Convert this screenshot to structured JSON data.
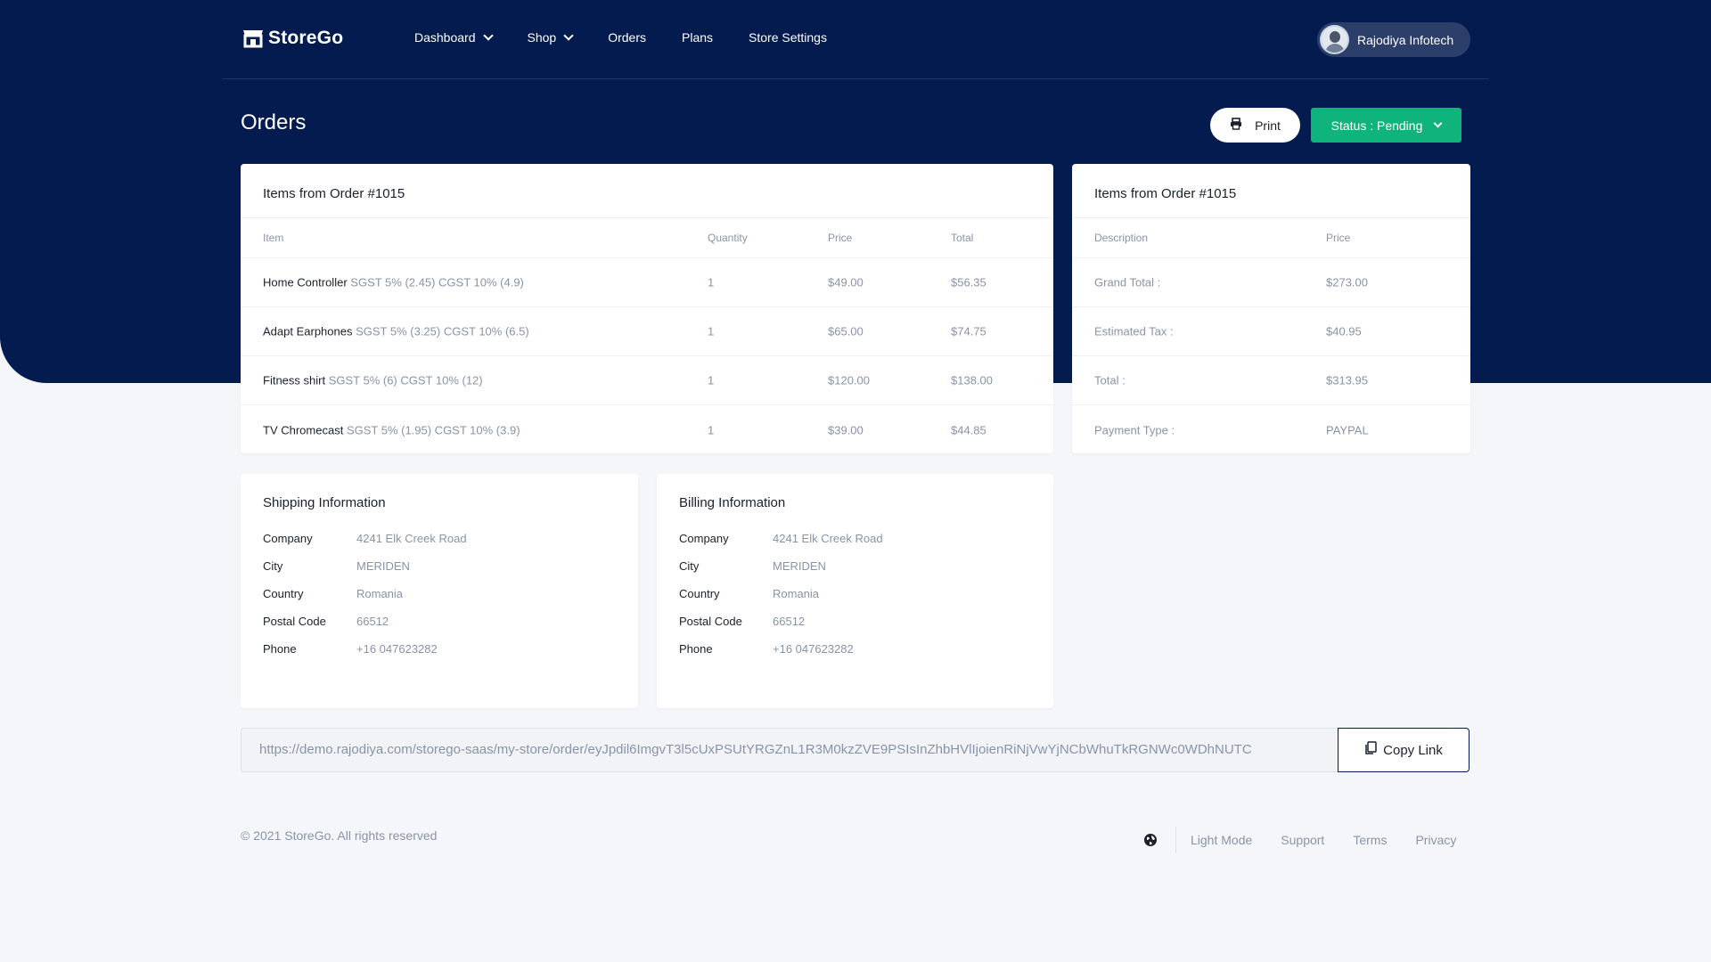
{
  "brand": {
    "name": "StoreGo"
  },
  "nav": {
    "items": [
      {
        "label": "Dashboard",
        "dropdown": true
      },
      {
        "label": "Shop",
        "dropdown": true
      },
      {
        "label": "Orders",
        "dropdown": false
      },
      {
        "label": "Plans",
        "dropdown": false
      },
      {
        "label": "Store Settings",
        "dropdown": false
      }
    ]
  },
  "user": {
    "name": "Rajodiya Infotech"
  },
  "page": {
    "title": "Orders",
    "print_label": "Print",
    "status_label": "Status : Pending"
  },
  "items_card": {
    "title": "Items from Order #1015",
    "columns": [
      "Item",
      "Quantity",
      "Price",
      "Total"
    ],
    "rows": [
      {
        "name": "Home Controller",
        "tax": "SGST 5% (2.45) CGST 10% (4.9)",
        "qty": "1",
        "price": "$49.00",
        "total": "$56.35"
      },
      {
        "name": "Adapt Earphones",
        "tax": "SGST 5% (3.25) CGST 10% (6.5)",
        "qty": "1",
        "price": "$65.00",
        "total": "$74.75"
      },
      {
        "name": "Fitness shirt",
        "tax": "SGST 5% (6) CGST 10% (12)",
        "qty": "1",
        "price": "$120.00",
        "total": "$138.00"
      },
      {
        "name": "TV Chromecast",
        "tax": "SGST 5% (1.95) CGST 10% (3.9)",
        "qty": "1",
        "price": "$39.00",
        "total": "$44.85"
      }
    ]
  },
  "summary_card": {
    "title": "Items from Order #1015",
    "columns": [
      "Description",
      "Price"
    ],
    "rows": [
      {
        "label": "Grand Total :",
        "value": "$273.00"
      },
      {
        "label": "Estimated Tax :",
        "value": "$40.95"
      },
      {
        "label": "Total :",
        "value": "$313.95"
      },
      {
        "label": "Payment Type :",
        "value": "PAYPAL"
      }
    ]
  },
  "shipping": {
    "title": "Shipping Information",
    "rows": [
      {
        "label": "Company",
        "value": "4241 Elk Creek Road"
      },
      {
        "label": "City",
        "value": "MERIDEN"
      },
      {
        "label": "Country",
        "value": "Romania"
      },
      {
        "label": "Postal Code",
        "value": "66512"
      },
      {
        "label": "Phone",
        "value": "+16 047623282"
      }
    ]
  },
  "billing": {
    "title": "Billing Information",
    "rows": [
      {
        "label": "Company",
        "value": "4241 Elk Creek Road"
      },
      {
        "label": "City",
        "value": "MERIDEN"
      },
      {
        "label": "Country",
        "value": "Romania"
      },
      {
        "label": "Postal Code",
        "value": "66512"
      },
      {
        "label": "Phone",
        "value": "+16 047623282"
      }
    ]
  },
  "link": {
    "url": "https://demo.rajodiya.com/storego-saas/my-store/order/eyJpdil6ImgvT3l5cUxPSUtYRGZnL1R3M0kzZVE9PSIsInZhbHVlIjoienRiNjVwYjNCbWhuTkRGNWc0WDhNUTC",
    "copy_label": "Copy Link"
  },
  "footer": {
    "copyright": "© 2021 StoreGo. All rights reserved",
    "links": [
      "Light Mode",
      "Support",
      "Terms",
      "Privacy"
    ]
  },
  "colors": {
    "hero": "#031b4e",
    "status": "#0fb47c",
    "background": "#f5f6fa"
  }
}
